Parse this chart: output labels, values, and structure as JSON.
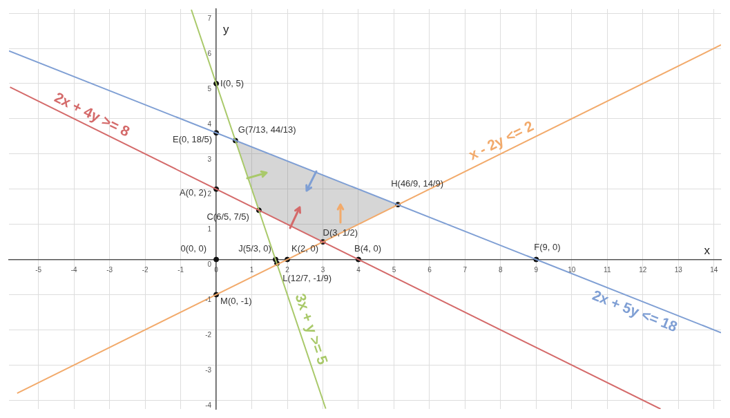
{
  "chart_data": {
    "type": "line",
    "xlabel": "x",
    "ylabel": "y",
    "xlim": [
      -5.83,
      14.2
    ],
    "ylim": [
      -4.25,
      7.12
    ],
    "xticks": [
      -5,
      -4,
      -3,
      -2,
      -1,
      0,
      1,
      2,
      3,
      4,
      5,
      6,
      7,
      8,
      9,
      10,
      11,
      12,
      13,
      14
    ],
    "yticks": [
      -4,
      -3,
      -2,
      -1,
      0,
      1,
      2,
      3,
      4,
      5,
      6,
      7
    ],
    "grid": true,
    "legend": false,
    "marker": "none",
    "line_style": "solid",
    "series": [
      {
        "name": "2x + 4y >= 8",
        "color": "#d46a6a",
        "x": [
          -5.8,
          12.5
        ],
        "values": [
          4.9,
          -4.25
        ]
      },
      {
        "name": "2x + 5y <= 18",
        "color": "#7f9fd4",
        "x": [
          -5.83,
          14.2
        ],
        "values": [
          5.93,
          -2.08
        ]
      },
      {
        "name": "x - 2y <= 2",
        "color": "#f2aa6b",
        "x": [
          -5.6,
          14.2
        ],
        "values": [
          -3.8,
          6.1
        ]
      },
      {
        "name": "3x + y >= 5",
        "color": "#a9c96a",
        "x": [
          -0.7,
          3.08
        ],
        "values": [
          7.1,
          -4.24
        ]
      },
      {
        "type": "area",
        "color": "#777777",
        "x": [
          0.54,
          5.11,
          3,
          1.2,
          0.54
        ],
        "values": [
          3.38,
          1.56,
          0.5,
          1.4,
          3.38
        ]
      },
      {
        "type": "scatter",
        "color": "#111111",
        "marker": "circle",
        "x": [
          0,
          0,
          0.54,
          0,
          1.2,
          3,
          5.11,
          0,
          1.67,
          2,
          1.71,
          0,
          4,
          9
        ],
        "values": [
          5,
          3.6,
          3.38,
          2,
          1.4,
          0.5,
          1.56,
          0,
          0,
          0,
          -0.11,
          -1,
          0,
          0
        ]
      }
    ],
    "annotations": [
      {
        "text": "I(0, 5)",
        "x": 0,
        "y": 5
      },
      {
        "text": "E(0, 18/5)",
        "x": 0,
        "y": 3.6
      },
      {
        "text": "G(7/13, 44/13)",
        "x": 0.538,
        "y": 3.385
      },
      {
        "text": "A(0, 2)",
        "x": 0,
        "y": 2
      },
      {
        "text": "C(6/5, 7/5)",
        "x": 1.2,
        "y": 1.4
      },
      {
        "text": "D(3, 1/2)",
        "x": 3,
        "y": 0.5
      },
      {
        "text": "H(46/9, 14/9)",
        "x": 5.111,
        "y": 1.556
      },
      {
        "text": "0(0, 0)",
        "x": 0,
        "y": 0
      },
      {
        "text": "J(5/3, 0)",
        "x": 1.667,
        "y": 0
      },
      {
        "text": "K(2, 0)",
        "x": 2,
        "y": 0
      },
      {
        "text": "L(12/7, -1/9)",
        "x": 1.714,
        "y": -0.111
      },
      {
        "text": "M(0, -1)",
        "x": 0,
        "y": -1
      },
      {
        "text": "B(4, 0)",
        "x": 4,
        "y": 0
      },
      {
        "text": "F(9, 0)",
        "x": 9,
        "y": 0
      }
    ]
  }
}
